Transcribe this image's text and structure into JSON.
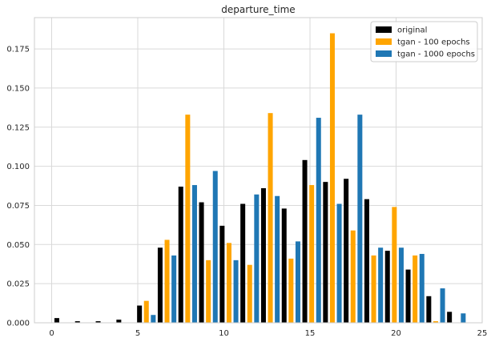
{
  "chart_data": {
    "type": "bar",
    "title": "departure_time",
    "xlabel": "",
    "ylabel": "",
    "xlim": [
      -1,
      25
    ],
    "ylim": [
      0,
      0.195
    ],
    "xticks": [
      0,
      5,
      10,
      15,
      20,
      25
    ],
    "yticks": [
      0.0,
      0.025,
      0.05,
      0.075,
      0.1,
      0.125,
      0.15,
      0.175
    ],
    "ytick_labels": [
      "0.000",
      "0.025",
      "0.050",
      "0.075",
      "0.100",
      "0.125",
      "0.150",
      "0.175"
    ],
    "xtick_labels": [
      "0",
      "5",
      "10",
      "15",
      "20",
      "25"
    ],
    "grid": true,
    "legend_position": "top-right",
    "bar_group_offset": 0.4,
    "bar_width": 0.28,
    "series": [
      {
        "name": "original",
        "color": "#000000",
        "x": [
          0.3,
          1.5,
          2.7,
          3.9,
          5.1,
          6.3,
          7.5,
          8.7,
          9.9,
          11.1,
          12.3,
          13.5,
          14.7,
          15.9,
          17.1,
          18.3,
          19.5,
          20.7,
          21.9,
          23.1
        ],
        "values": [
          0.003,
          0.001,
          0.001,
          0.002,
          0.011,
          0.048,
          0.087,
          0.077,
          0.062,
          0.076,
          0.086,
          0.073,
          0.104,
          0.09,
          0.092,
          0.079,
          0.046,
          0.034,
          0.017,
          0.007
        ]
      },
      {
        "name": "tgan - 100 epochs",
        "color": "#FFA500",
        "x": [
          5.1,
          6.3,
          7.5,
          8.7,
          9.9,
          11.1,
          12.3,
          13.5,
          14.7,
          15.9,
          17.1,
          18.3,
          19.5,
          20.7,
          21.9
        ],
        "values": [
          0.014,
          0.053,
          0.133,
          0.04,
          0.051,
          0.037,
          0.134,
          0.041,
          0.088,
          0.185,
          0.059,
          0.043,
          0.074,
          0.043,
          0.001
        ]
      },
      {
        "name": "tgan - 1000 epochs",
        "color": "#1F77B4",
        "x": [
          5.1,
          6.3,
          7.5,
          8.7,
          9.9,
          11.1,
          12.3,
          13.5,
          14.7,
          15.9,
          17.1,
          18.3,
          19.5,
          20.7,
          21.9,
          23.1
        ],
        "values": [
          0.005,
          0.043,
          0.088,
          0.097,
          0.04,
          0.082,
          0.081,
          0.052,
          0.131,
          0.076,
          0.133,
          0.048,
          0.048,
          0.044,
          0.022,
          0.006
        ]
      }
    ]
  }
}
